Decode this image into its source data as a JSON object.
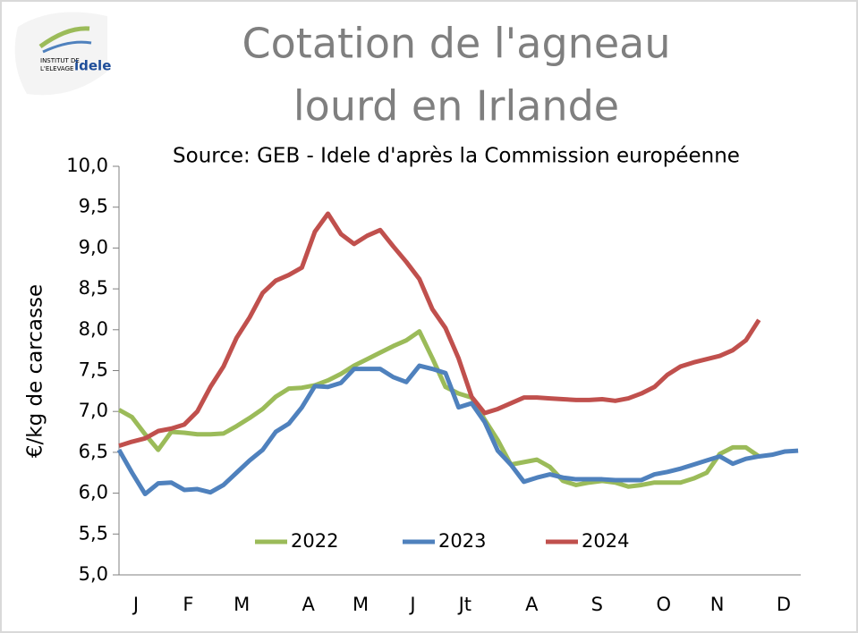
{
  "logo": {
    "line1": "INSTITUT DE",
    "line2": "L'ELEVAGE",
    "brand": "idele"
  },
  "chart_data": {
    "type": "line",
    "title": [
      "Cotation de l'agneau",
      "lourd en Irlande"
    ],
    "subtitle": "Source: GEB - Idele d'après la Commission européenne",
    "y_label": "€/kg de carcasse",
    "xlim": [
      1,
      53.2
    ],
    "xticks": [
      {
        "value": 2.3,
        "label": "J"
      },
      {
        "value": 6.3,
        "label": "F"
      },
      {
        "value": 10.4,
        "label": "M"
      },
      {
        "value": 15.5,
        "label": "A"
      },
      {
        "value": 19.5,
        "label": "M"
      },
      {
        "value": 23.5,
        "label": "J"
      },
      {
        "value": 27.5,
        "label": "Jt"
      },
      {
        "value": 32.6,
        "label": "A"
      },
      {
        "value": 37.6,
        "label": "S"
      },
      {
        "value": 42.7,
        "label": "O"
      },
      {
        "value": 46.8,
        "label": "N"
      },
      {
        "value": 51.9,
        "label": "D"
      }
    ],
    "ylim": [
      5,
      10
    ],
    "yticks": [
      {
        "value": 5,
        "label": "5,0"
      },
      {
        "value": 5.5,
        "label": "5,5"
      },
      {
        "value": 6,
        "label": "6,0"
      },
      {
        "value": 6.5,
        "label": "6,5"
      },
      {
        "value": 7,
        "label": "7,0"
      },
      {
        "value": 7.5,
        "label": "7,5"
      },
      {
        "value": 8,
        "label": "8,0"
      },
      {
        "value": 8.5,
        "label": "8,5"
      },
      {
        "value": 9,
        "label": "9,0"
      },
      {
        "value": 9.5,
        "label": "9,5"
      },
      {
        "value": 10,
        "label": "10,0"
      }
    ],
    "legend": "bottom",
    "series": [
      {
        "name": "2022",
        "color": "#9bbb59",
        "x": [
          1,
          2,
          3,
          4,
          5,
          6,
          7,
          8,
          9,
          10,
          11,
          12,
          13,
          14,
          15,
          16,
          17,
          18,
          19,
          20,
          21,
          22,
          23,
          24,
          25,
          26,
          27,
          28,
          29,
          30,
          31,
          32,
          33,
          34,
          35,
          36,
          37,
          38,
          39,
          40,
          41,
          42,
          43,
          44,
          45,
          46,
          47,
          48,
          49,
          50
        ],
        "values": [
          7.02,
          6.93,
          6.72,
          6.53,
          6.75,
          6.74,
          6.72,
          6.72,
          6.73,
          6.82,
          6.92,
          7.03,
          7.18,
          7.28,
          7.29,
          7.32,
          7.38,
          7.46,
          7.56,
          7.64,
          7.72,
          7.8,
          7.87,
          7.98,
          7.65,
          7.3,
          7.22,
          7.17,
          6.9,
          6.65,
          6.35,
          6.38,
          6.41,
          6.32,
          6.15,
          6.1,
          6.13,
          6.15,
          6.13,
          6.08,
          6.1,
          6.13,
          6.13,
          6.13,
          6.18,
          6.25,
          6.48,
          6.56,
          6.56,
          6.45
        ]
      },
      {
        "name": "2023",
        "color": "#4f81bd",
        "x": [
          1,
          2,
          3,
          4,
          5,
          6,
          7,
          8,
          9,
          10,
          11,
          12,
          13,
          14,
          15,
          16,
          17,
          18,
          19,
          20,
          21,
          22,
          23,
          24,
          25,
          26,
          27,
          28,
          29,
          30,
          31,
          32,
          33,
          34,
          35,
          36,
          37,
          38,
          39,
          40,
          41,
          42,
          43,
          44,
          45,
          46,
          47,
          48,
          49,
          50,
          51,
          52,
          53
        ],
        "values": [
          6.53,
          6.25,
          5.99,
          6.12,
          6.13,
          6.04,
          6.05,
          6.01,
          6.1,
          6.25,
          6.4,
          6.53,
          6.75,
          6.85,
          7.05,
          7.31,
          7.3,
          7.35,
          7.52,
          7.52,
          7.52,
          7.42,
          7.36,
          7.56,
          7.52,
          7.47,
          7.05,
          7.1,
          6.87,
          6.52,
          6.35,
          6.14,
          6.19,
          6.23,
          6.19,
          6.17,
          6.17,
          6.17,
          6.16,
          6.16,
          6.16,
          6.23,
          6.26,
          6.3,
          6.35,
          6.4,
          6.45,
          6.36,
          6.42,
          6.45,
          6.47,
          6.51,
          6.52
        ]
      },
      {
        "name": "2024",
        "color": "#c0504d",
        "x": [
          1,
          2,
          3,
          4,
          5,
          6,
          7,
          8,
          9,
          10,
          11,
          12,
          13,
          14,
          15,
          16,
          17,
          18,
          19,
          20,
          21,
          22,
          23,
          24,
          25,
          26,
          27,
          28,
          29,
          30,
          31,
          32,
          33,
          34,
          35,
          36,
          37,
          38,
          39,
          40,
          41,
          42,
          43,
          44,
          45,
          46,
          47,
          48,
          49,
          50
        ],
        "values": [
          6.58,
          6.63,
          6.67,
          6.76,
          6.79,
          6.84,
          7.0,
          7.3,
          7.55,
          7.9,
          8.15,
          8.45,
          8.6,
          8.67,
          8.76,
          9.2,
          9.42,
          9.17,
          9.05,
          9.15,
          9.22,
          9.02,
          8.83,
          8.62,
          8.25,
          8.02,
          7.65,
          7.18,
          6.98,
          7.03,
          7.1,
          7.17,
          7.17,
          7.16,
          7.15,
          7.14,
          7.14,
          7.15,
          7.13,
          7.16,
          7.22,
          7.3,
          7.45,
          7.55,
          7.6,
          7.64,
          7.68,
          7.75,
          7.87,
          8.12
        ]
      }
    ]
  }
}
